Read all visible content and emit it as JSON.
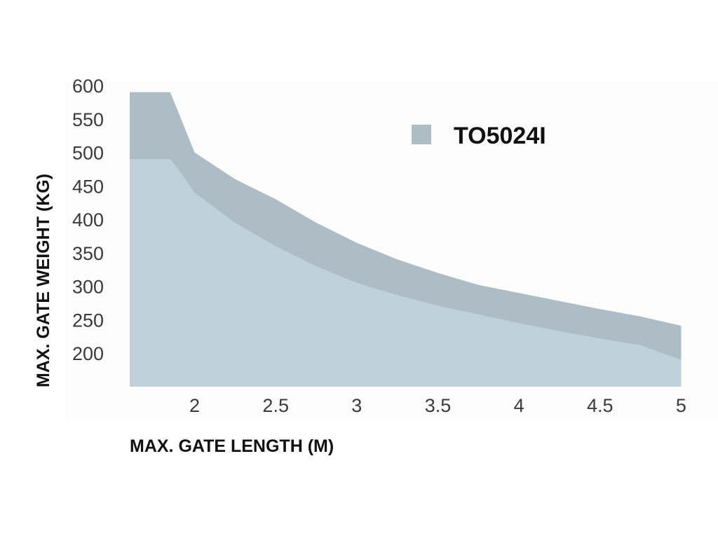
{
  "chart_data": {
    "type": "area",
    "xlabel": "MAX. GATE LENGTH (M)",
    "ylabel": "MAX. GATE WEIGHT (KG)",
    "x_ticks": [
      "2",
      "2.5",
      "3",
      "3.5",
      "4",
      "4.5",
      "5"
    ],
    "y_ticks": [
      "600",
      "550",
      "500",
      "450",
      "400",
      "350",
      "300",
      "250",
      "200"
    ],
    "xlim": [
      1.6,
      5.05
    ],
    "ylim": [
      150,
      600
    ],
    "x": [
      1.6,
      1.85,
      1.9,
      2.0,
      2.25,
      2.5,
      2.75,
      3.0,
      3.25,
      3.5,
      3.75,
      4.0,
      4.25,
      4.5,
      4.75,
      5.0
    ],
    "series": [
      {
        "name": "TO5024I",
        "values": [
          590,
          590,
          560,
          500,
          460,
          430,
          395,
          365,
          340,
          320,
          302,
          290,
          278,
          266,
          255,
          241
        ],
        "color": "#aebcc6"
      },
      {
        "values": [
          490,
          490,
          475,
          440,
          395,
          360,
          330,
          305,
          287,
          271,
          258,
          245,
          233,
          222,
          212,
          190
        ],
        "color": "#bfd1db"
      }
    ],
    "legend": {
      "label": "TO5024I",
      "position": "top-right",
      "color": "#aebcc6"
    },
    "grid": false
  }
}
